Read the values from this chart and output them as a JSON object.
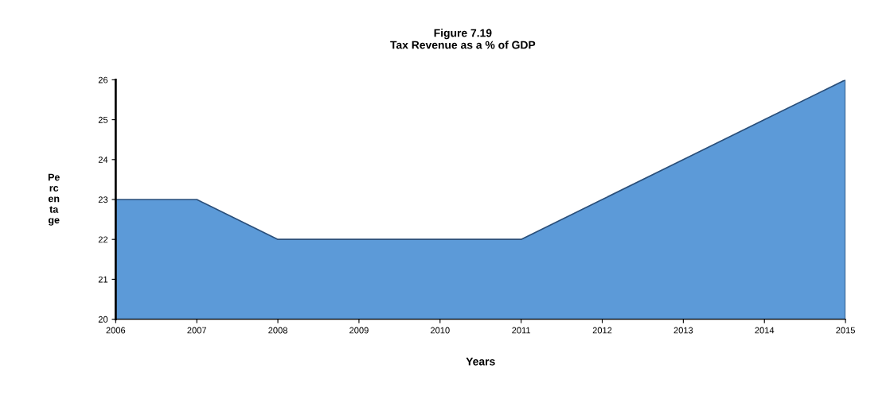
{
  "chart_data": {
    "type": "area",
    "title": "Figure 7.19\nTax Revenue as a % of GDP",
    "xlabel": "Years",
    "ylabel": "Pe\nrc\nen\nta\nge",
    "categories": [
      "2006",
      "2007",
      "2008",
      "2009",
      "2010",
      "2011",
      "2012",
      "2013",
      "2014",
      "2015"
    ],
    "series": [
      {
        "color": "#5c9ad8",
        "values": [
          23,
          23,
          22,
          22,
          22,
          22,
          23,
          24,
          25,
          26
        ]
      }
    ],
    "ylim": [
      20,
      26
    ],
    "yticks": [
      20,
      21,
      22,
      23,
      24,
      25,
      26
    ],
    "grid": false,
    "legend": false
  }
}
